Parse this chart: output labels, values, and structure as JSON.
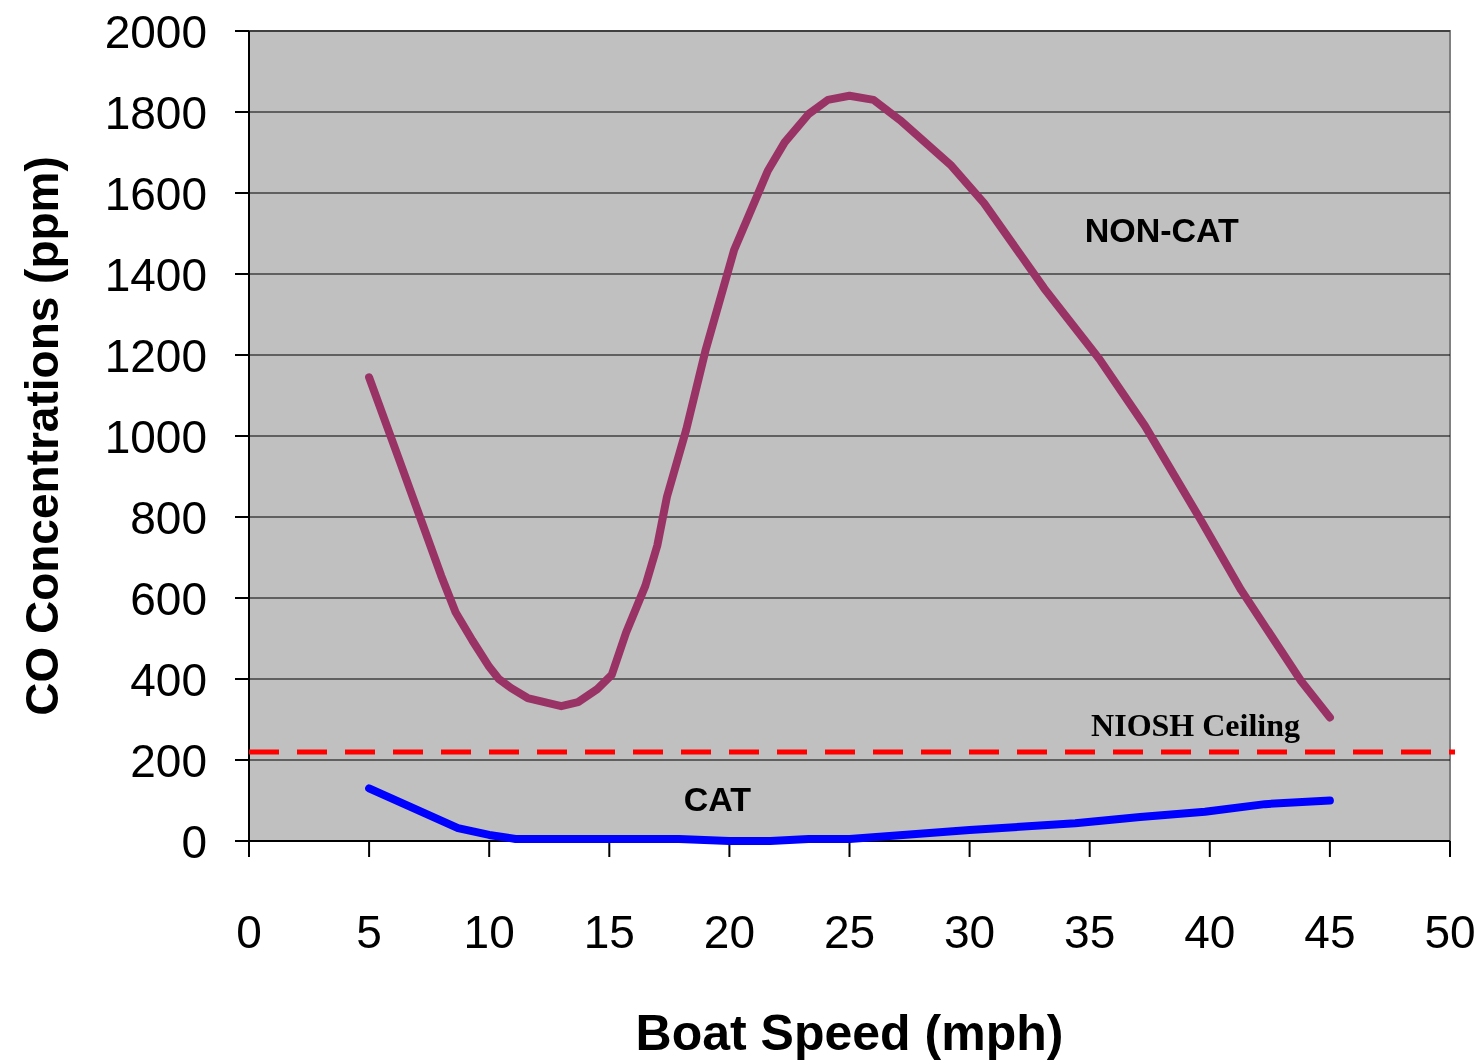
{
  "chart_data": {
    "type": "line",
    "xlabel": "Boat Speed (mph)",
    "ylabel": "CO Concentrations (ppm)",
    "xlim": [
      0,
      50
    ],
    "xticks": [
      0,
      5,
      10,
      15,
      20,
      25,
      30,
      35,
      40,
      45,
      50
    ],
    "ylim": [
      0,
      2000
    ],
    "yticks": [
      0,
      200,
      400,
      600,
      800,
      1000,
      1200,
      1400,
      1600,
      1800,
      2000
    ],
    "grid": "y",
    "marker": "none",
    "line_style": "solid",
    "series": [
      {
        "name": "NON-CAT",
        "color": "#993366",
        "x": [
          5,
          6.2,
          7.3,
          8,
          8.6,
          9.3,
          10,
          10.4,
          10.9,
          11.6,
          13,
          13.7,
          14.5,
          15.1,
          15.7,
          16.5,
          17,
          17.4,
          18.2,
          19,
          20.2,
          21.6,
          22.3,
          23.3,
          24.1,
          25,
          26,
          27.1,
          29.2,
          30.6,
          33.1,
          35.4,
          37.3,
          39.6,
          41.3,
          43.8,
          45
        ],
        "values": [
          1145,
          950,
          770,
          655,
          565,
          495,
          430,
          400,
          378,
          353,
          333,
          343,
          375,
          410,
          515,
          630,
          730,
          850,
          1015,
          1210,
          1460,
          1655,
          1725,
          1795,
          1830,
          1840,
          1830,
          1780,
          1670,
          1575,
          1365,
          1190,
          1025,
          795,
          620,
          395,
          305
        ]
      },
      {
        "name": "CAT",
        "color": "#0000ff",
        "x": [
          5,
          6.7,
          8.7,
          10,
          11.1,
          17.9,
          20,
          21.7,
          23.3,
          25,
          30,
          34.4,
          37.1,
          39.8,
          42.3,
          45
        ],
        "values": [
          130,
          85,
          32,
          15,
          5,
          5,
          0,
          0,
          5,
          5,
          27,
          44,
          59,
          72,
          91,
          100
        ]
      }
    ],
    "ref_lines": [
      {
        "axis": "y",
        "value": 220,
        "label": "NIOSH Ceiling",
        "color": "#ff0000",
        "line_style": "dashed"
      }
    ]
  }
}
